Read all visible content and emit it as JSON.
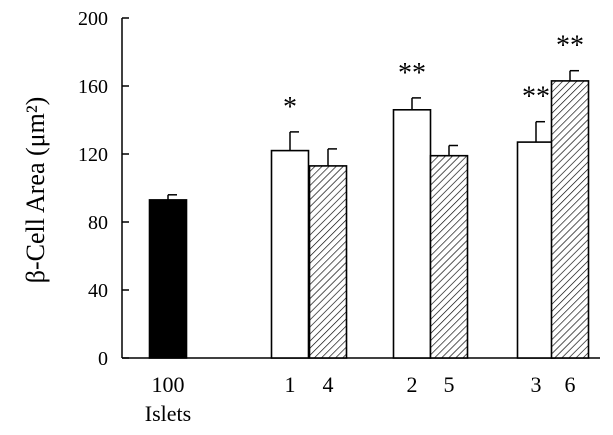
{
  "chart_data": {
    "type": "bar",
    "title": "",
    "xlabel": "",
    "ylabel": "β-Cell Area (μm²)",
    "ylim": [
      0,
      200
    ],
    "yticks": [
      0,
      40,
      80,
      120,
      160,
      200
    ],
    "grid": false,
    "bars": [
      {
        "category": "100",
        "value": 93,
        "error": 3,
        "fill": "solid",
        "color": "#000000",
        "significance": ""
      },
      {
        "category": "1",
        "value": 122,
        "error": 11,
        "fill": "open",
        "color": "#ffffff",
        "significance": "*"
      },
      {
        "category": "4",
        "value": 113,
        "error": 10,
        "fill": "hatched",
        "color": "#000000",
        "significance": ""
      },
      {
        "category": "2",
        "value": 146,
        "error": 7,
        "fill": "open",
        "color": "#ffffff",
        "significance": "**"
      },
      {
        "category": "5",
        "value": 119,
        "error": 6,
        "fill": "hatched",
        "color": "#000000",
        "significance": ""
      },
      {
        "category": "3",
        "value": 127,
        "error": 12,
        "fill": "open",
        "color": "#ffffff",
        "significance": "**"
      },
      {
        "category": "6",
        "value": 163,
        "error": 6,
        "fill": "hatched",
        "color": "#000000",
        "significance": "**"
      }
    ],
    "sublabels": [
      {
        "text": "Islets",
        "under": "100"
      }
    ]
  }
}
